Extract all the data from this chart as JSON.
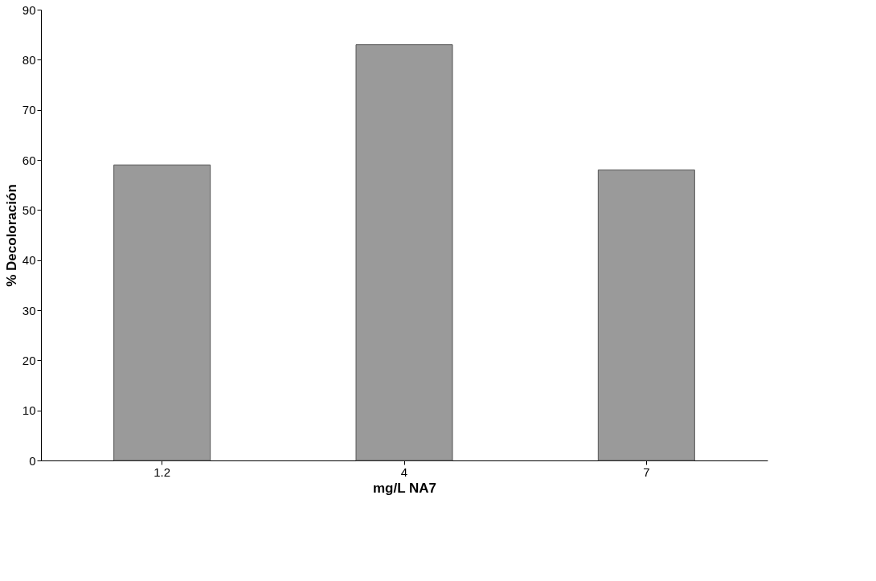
{
  "chart_data": {
    "type": "bar",
    "xlabel": "mg/L NA7",
    "ylabel": "% Decoloración",
    "categories": [
      "1.2",
      "4",
      "7"
    ],
    "values": [
      59,
      83,
      58
    ],
    "color": "#9a9a9a",
    "ylim": [
      0,
      90
    ],
    "yticks": [
      0,
      10,
      20,
      30,
      40,
      50,
      60,
      70,
      80,
      90
    ],
    "grid": false
  }
}
